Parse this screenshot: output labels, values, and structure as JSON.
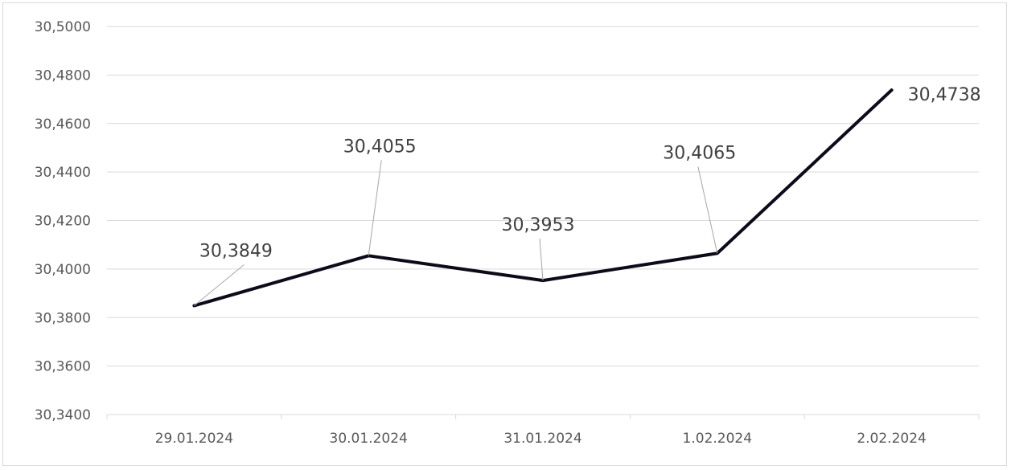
{
  "chart_data": {
    "type": "line",
    "title": "",
    "xlabel": "",
    "ylabel": "",
    "categories": [
      "29.01.2024",
      "30.01.2024",
      "31.01.2024",
      "1.02.2024",
      "2.02.2024"
    ],
    "series": [
      {
        "values": [
          30.3849,
          30.4055,
          30.3953,
          30.4065,
          30.4738
        ]
      }
    ],
    "data_labels": [
      "30,3849",
      "30,4055",
      "30,3953",
      "30,4065",
      "30,4738"
    ],
    "ylim": [
      30.34,
      30.5
    ],
    "yticks": [
      "30,3400",
      "30,3600",
      "30,3800",
      "30,4000",
      "30,4200",
      "30,4400",
      "30,4600",
      "30,4800",
      "30,5000"
    ],
    "grid": true,
    "legend": "none",
    "colors": {
      "line": "#0d0a1a",
      "grid": "#d9d9d9",
      "leader": "#a6a6a6",
      "text": "#595959"
    }
  }
}
